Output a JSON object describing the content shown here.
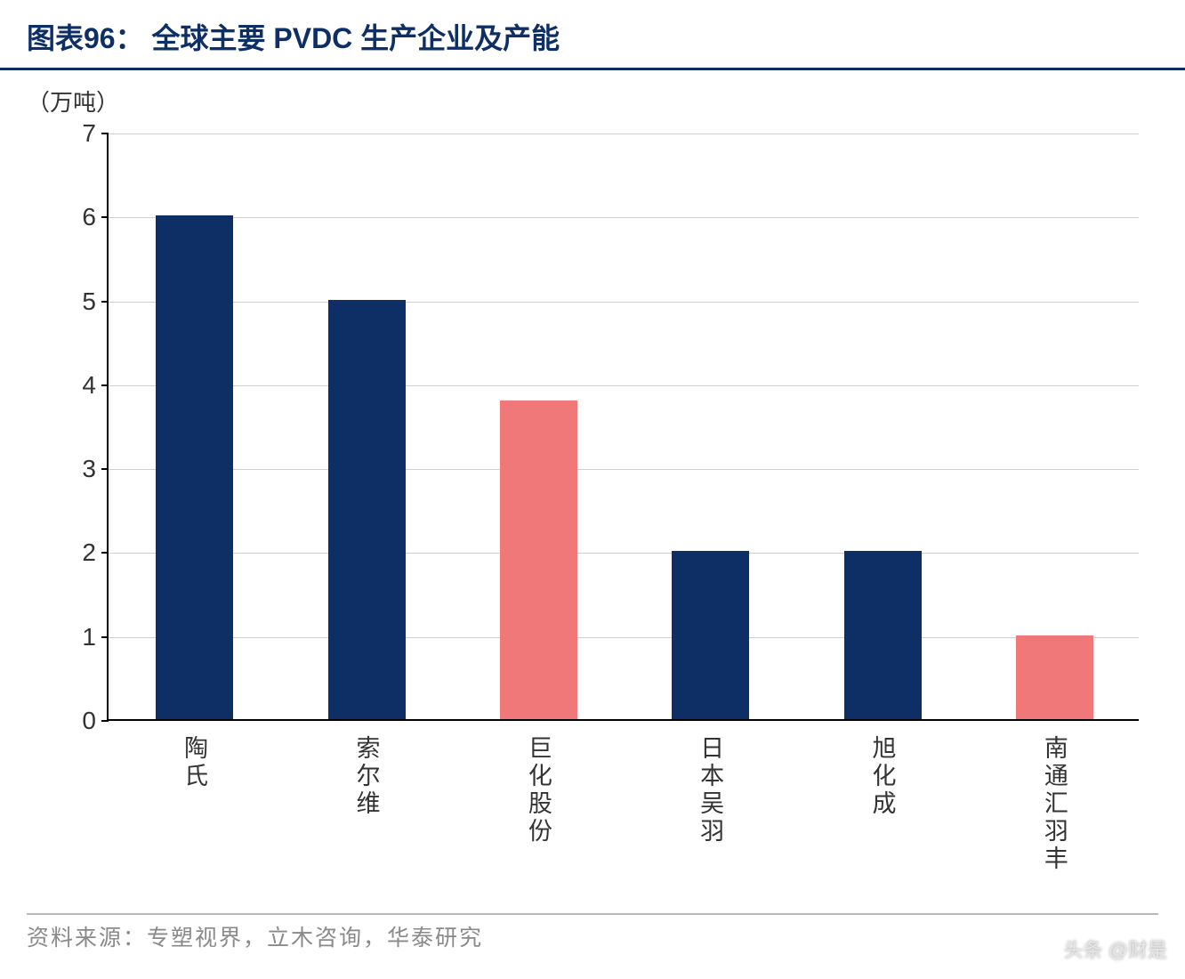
{
  "title": "图表96：  全球主要 PVDC 生产企业及产能",
  "title_color": "#0e2f66",
  "title_fontsize": 32,
  "title_border_color": "#0e2f66",
  "y_unit": "（万吨）",
  "y_unit_fontsize": 26,
  "y_unit_color": "#333333",
  "chart": {
    "type": "bar",
    "categories": [
      "陶氏",
      "索尔维",
      "巨化股份",
      "日本吴羽",
      "旭化成",
      "南通汇羽丰"
    ],
    "values": [
      6.0,
      5.0,
      3.8,
      2.0,
      2.0,
      1.0
    ],
    "bar_colors": [
      "#0e2f66",
      "#0e2f66",
      "#f17878",
      "#0e2f66",
      "#0e2f66",
      "#f17878"
    ],
    "ylim": [
      0,
      7
    ],
    "yticks": [
      0,
      1,
      2,
      3,
      4,
      5,
      6,
      7
    ],
    "ytick_fontsize": 28,
    "ytick_color": "#333333",
    "xtick_fontsize": 27,
    "xtick_color": "#333333",
    "grid_color": "#cfcfcf",
    "axis_color": "#000000",
    "bar_width_ratio": 0.45,
    "background_color": "#ffffff"
  },
  "source": "资料来源：专塑视界，立木咨询，华泰研究",
  "source_fontsize": 25,
  "source_color": "#8a8a8a",
  "footer_line_color": "#b8b8b8",
  "watermark": "头条 @财是",
  "watermark_color": "#e6e6e6",
  "watermark_fontsize": 22
}
